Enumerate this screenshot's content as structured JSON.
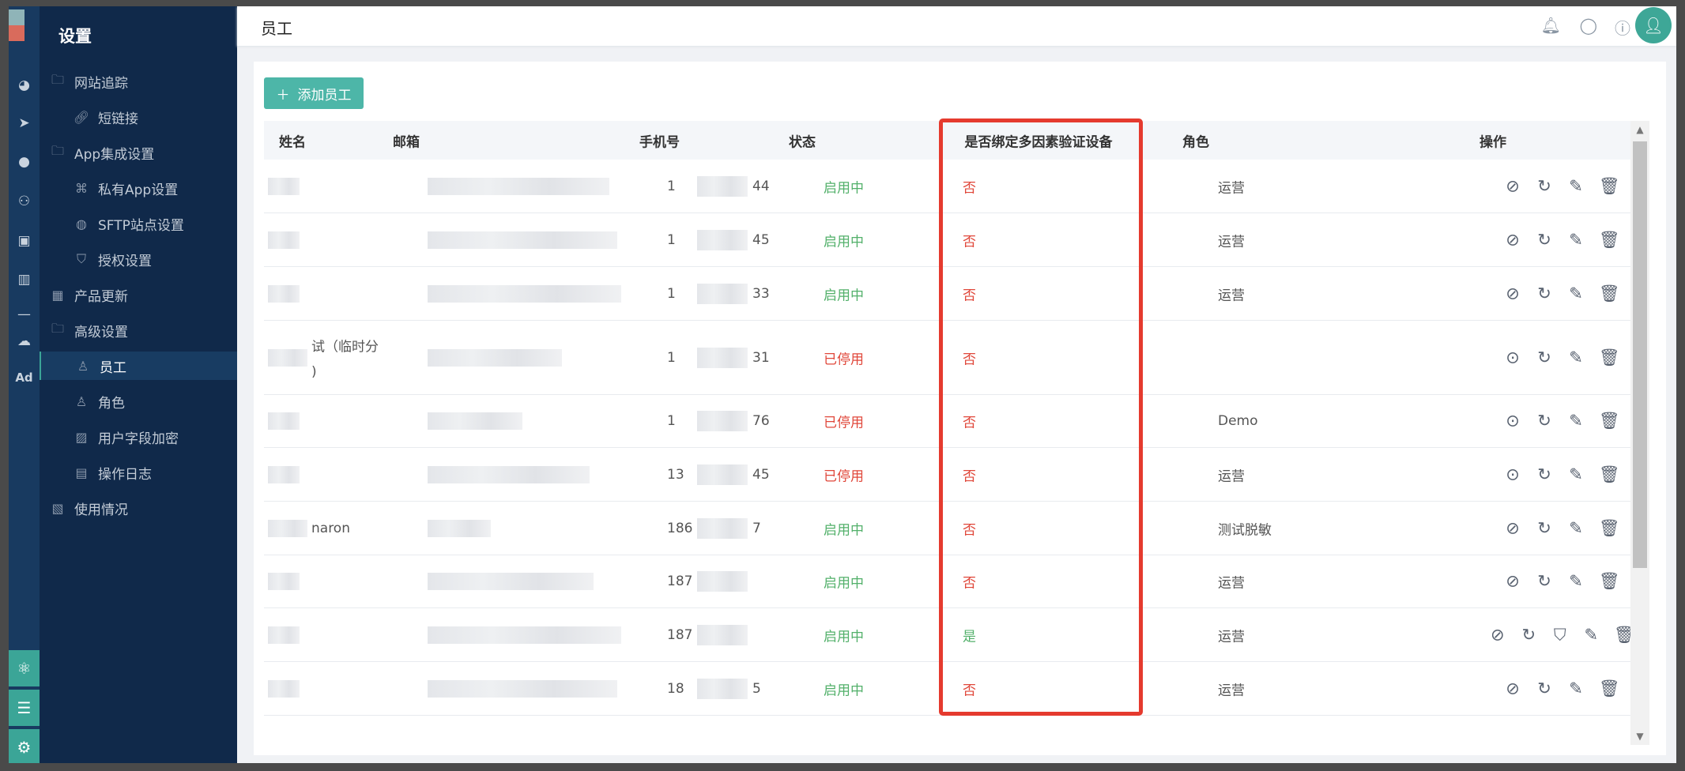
{
  "sidebar": {
    "title": "设置",
    "items": [
      {
        "label": "网站追踪",
        "icon": "folder-icon",
        "level": 0
      },
      {
        "label": "短链接",
        "icon": "link-icon",
        "level": 1
      },
      {
        "label": "App集成设置",
        "icon": "folder-icon",
        "level": 0
      },
      {
        "label": "私有App设置",
        "icon": "command-icon",
        "level": 1
      },
      {
        "label": "SFTP站点设置",
        "icon": "globe-icon",
        "level": 1
      },
      {
        "label": "授权设置",
        "icon": "shield-key-icon",
        "level": 1
      },
      {
        "label": "产品更新",
        "icon": "grid-icon",
        "level": 0
      },
      {
        "label": "高级设置",
        "icon": "folder-icon",
        "level": 0
      },
      {
        "label": "员工",
        "icon": "user-icon",
        "level": 1,
        "active": true
      },
      {
        "label": "角色",
        "icon": "user-role-icon",
        "level": 1
      },
      {
        "label": "用户字段加密",
        "icon": "encrypt-icon",
        "level": 1
      },
      {
        "label": "操作日志",
        "icon": "log-icon",
        "level": 1
      },
      {
        "label": "使用情况",
        "icon": "usage-icon",
        "level": 0
      }
    ]
  },
  "rail": {
    "icons": [
      "dashboard-icon",
      "send-icon",
      "user-icon",
      "users-icon",
      "bookmark-icon",
      "bar-chart-icon",
      "divider",
      "wechat-icon",
      "ad-icon"
    ],
    "ad_label": "Ad",
    "bottom": [
      "network-icon",
      "list-icon",
      "gear-icon"
    ]
  },
  "header": {
    "title": "员工",
    "icons": [
      "bell-icon",
      "chat-icon",
      "help-icon"
    ]
  },
  "toolbar": {
    "add_label": "添加员工"
  },
  "table": {
    "columns": [
      "姓名",
      "邮箱",
      "手机号",
      "状态",
      "是否绑定多因素验证设备",
      "角色",
      "操作"
    ],
    "rows": [
      {
        "name": "",
        "phone_prefix": "1",
        "phone_suffix": "44",
        "status": "启用中",
        "mfa": "否",
        "role": "运营",
        "actions": [
          "disable",
          "reset",
          "edit",
          "delete"
        ]
      },
      {
        "name": "",
        "phone_prefix": "1",
        "phone_suffix": "45",
        "status": "启用中",
        "mfa": "否",
        "role": "运营",
        "actions": [
          "disable",
          "reset",
          "edit",
          "delete"
        ]
      },
      {
        "name": "",
        "phone_prefix": "1",
        "phone_suffix": "33",
        "status": "启用中",
        "mfa": "否",
        "role": "运营",
        "actions": [
          "disable",
          "reset",
          "edit",
          "delete"
        ]
      },
      {
        "name": "试（临时分",
        "name2": ")",
        "phone_prefix": "1",
        "phone_suffix": "31",
        "status": "已停用",
        "mfa": "否",
        "role": "",
        "actions": [
          "enable",
          "reset",
          "edit",
          "delete"
        ]
      },
      {
        "name": "",
        "phone_prefix": "1",
        "phone_suffix": "76",
        "status": "已停用",
        "mfa": "否",
        "role": "Demo",
        "actions": [
          "enable",
          "reset",
          "edit",
          "delete"
        ]
      },
      {
        "name": "",
        "phone_prefix": "13",
        "phone_suffix": "45",
        "status": "已停用",
        "mfa": "否",
        "role": "运营",
        "actions": [
          "enable",
          "reset",
          "edit",
          "delete"
        ]
      },
      {
        "name": "naron",
        "phone_prefix": "186",
        "phone_suffix": "7",
        "status": "启用中",
        "mfa": "否",
        "role": "测试脱敏",
        "actions": [
          "disable",
          "reset",
          "edit",
          "delete"
        ]
      },
      {
        "name": "",
        "phone_prefix": "187",
        "phone_suffix": "",
        "status": "启用中",
        "mfa": "否",
        "role": "运营",
        "actions": [
          "disable",
          "reset",
          "edit",
          "delete"
        ]
      },
      {
        "name": "",
        "phone_prefix": "187",
        "phone_suffix": "",
        "status": "启用中",
        "mfa": "是",
        "role": "运营",
        "actions": [
          "disable",
          "reset",
          "mfa-shield",
          "edit",
          "delete"
        ]
      },
      {
        "name": "",
        "phone_prefix": "18",
        "phone_suffix": "5",
        "status": "启用中",
        "mfa": "否",
        "role": "运营",
        "actions": [
          "disable",
          "reset",
          "edit",
          "delete"
        ]
      }
    ]
  },
  "colors": {
    "accent": "#4db6a8",
    "enabled": "#52b06a",
    "disabled": "#e0473a",
    "highlight_box": "#e53a2e",
    "sidebar": "#10294a"
  }
}
